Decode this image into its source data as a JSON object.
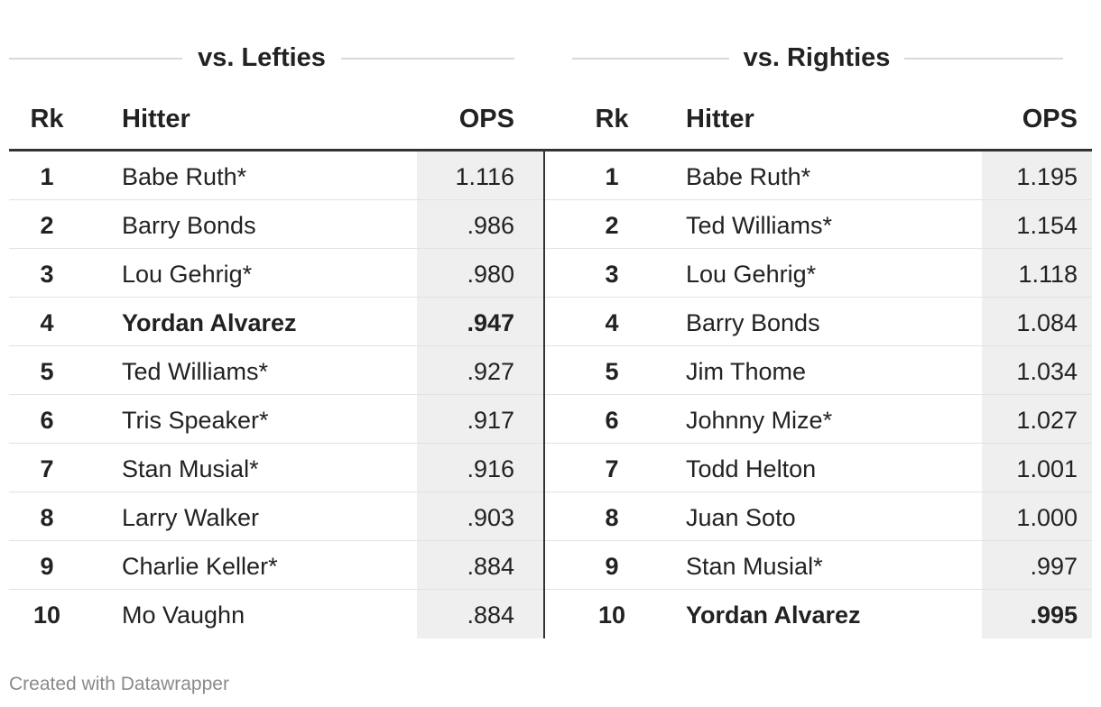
{
  "chart_data": {
    "type": "table",
    "columns": [
      "Rk",
      "Hitter",
      "OPS"
    ],
    "groups": [
      {
        "title": "vs. Lefties",
        "rows": [
          {
            "rk": "1",
            "hitter": "Babe Ruth*",
            "ops": "1.116",
            "highlight": false
          },
          {
            "rk": "2",
            "hitter": "Barry Bonds",
            "ops": ".986",
            "highlight": false
          },
          {
            "rk": "3",
            "hitter": "Lou Gehrig*",
            "ops": ".980",
            "highlight": false
          },
          {
            "rk": "4",
            "hitter": "Yordan Alvarez",
            "ops": ".947",
            "highlight": true
          },
          {
            "rk": "5",
            "hitter": "Ted Williams*",
            "ops": ".927",
            "highlight": false
          },
          {
            "rk": "6",
            "hitter": "Tris Speaker*",
            "ops": ".917",
            "highlight": false
          },
          {
            "rk": "7",
            "hitter": "Stan Musial*",
            "ops": ".916",
            "highlight": false
          },
          {
            "rk": "8",
            "hitter": "Larry Walker",
            "ops": ".903",
            "highlight": false
          },
          {
            "rk": "9",
            "hitter": "Charlie Keller*",
            "ops": ".884",
            "highlight": false
          },
          {
            "rk": "10",
            "hitter": "Mo Vaughn",
            "ops": ".884",
            "highlight": false
          }
        ]
      },
      {
        "title": "vs. Righties",
        "rows": [
          {
            "rk": "1",
            "hitter": "Babe Ruth*",
            "ops": "1.195",
            "highlight": false
          },
          {
            "rk": "2",
            "hitter": "Ted Williams*",
            "ops": "1.154",
            "highlight": false
          },
          {
            "rk": "3",
            "hitter": "Lou Gehrig*",
            "ops": "1.118",
            "highlight": false
          },
          {
            "rk": "4",
            "hitter": "Barry Bonds",
            "ops": "1.084",
            "highlight": false
          },
          {
            "rk": "5",
            "hitter": "Jim Thome",
            "ops": "1.034",
            "highlight": false
          },
          {
            "rk": "6",
            "hitter": "Johnny Mize*",
            "ops": "1.027",
            "highlight": false
          },
          {
            "rk": "7",
            "hitter": "Todd Helton",
            "ops": "1.001",
            "highlight": false
          },
          {
            "rk": "8",
            "hitter": "Juan Soto",
            "ops": "1.000",
            "highlight": false
          },
          {
            "rk": "9",
            "hitter": "Stan Musial*",
            "ops": ".997",
            "highlight": false
          },
          {
            "rk": "10",
            "hitter": "Yordan Alvarez",
            "ops": ".995",
            "highlight": true
          }
        ]
      }
    ]
  },
  "footer": {
    "credit": "Created with Datawrapper"
  },
  "colors": {
    "ops_column_bg": "#efefef",
    "rule": "#333333",
    "row_separator": "#e2e2e2",
    "footer_text": "#8a8a8a"
  }
}
